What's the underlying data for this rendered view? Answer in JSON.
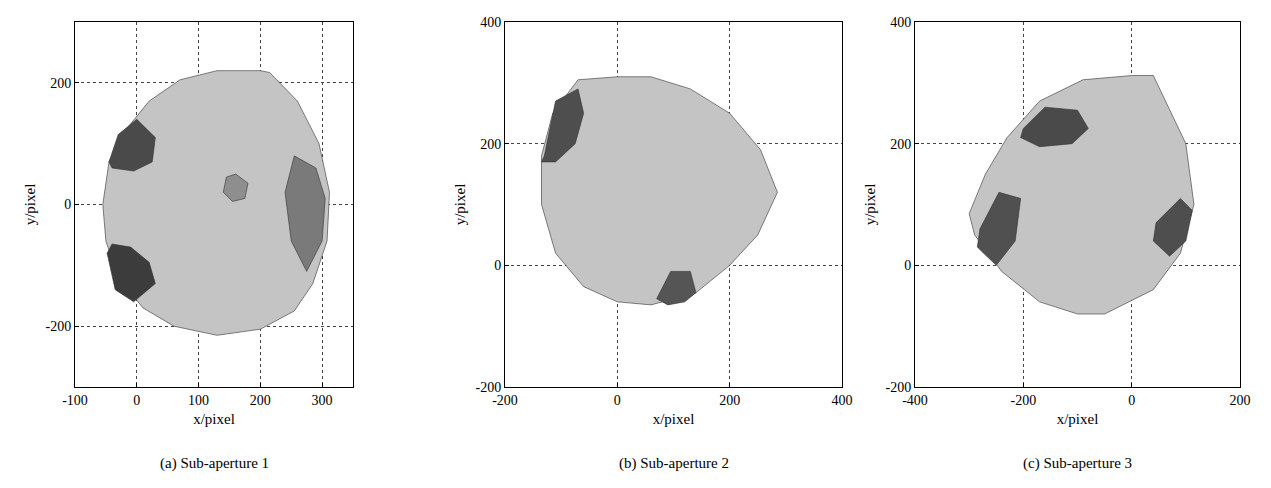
{
  "chart_data": [
    {
      "type": "area",
      "title": "(a) Sub-aperture 1",
      "x_label": "x/pixel",
      "y_label": "y/pixel",
      "xlim": [
        -100,
        350
      ],
      "ylim": [
        -300,
        300
      ],
      "xticks": [
        -100,
        0,
        100,
        200,
        300
      ],
      "yticks": [
        -200,
        0,
        200
      ],
      "grid": true,
      "series": [
        {
          "color": "#c4c4c4",
          "x": [
            -55,
            -45,
            -20,
            20,
            70,
            130,
            200,
            215,
            260,
            295,
            312,
            308,
            285,
            255,
            200,
            130,
            60,
            10,
            -30,
            -50,
            -55
          ],
          "y": [
            0,
            70,
            120,
            170,
            205,
            220,
            220,
            217,
            170,
            100,
            20,
            -60,
            -130,
            -175,
            -205,
            -215,
            -200,
            -170,
            -120,
            -60,
            0
          ]
        },
        {
          "color": "#4a4a4a",
          "x": [
            -45,
            -30,
            0,
            30,
            25,
            -5,
            -40,
            -45
          ],
          "y": [
            70,
            115,
            140,
            110,
            70,
            55,
            60,
            70
          ]
        },
        {
          "color": "#3c3c3c",
          "x": [
            -48,
            -35,
            -5,
            30,
            20,
            -10,
            -40,
            -48
          ],
          "y": [
            -80,
            -140,
            -160,
            -130,
            -95,
            -70,
            -65,
            -80
          ]
        },
        {
          "color": "#7a7a7a",
          "x": [
            255,
            290,
            305,
            300,
            275,
            250,
            240,
            255
          ],
          "y": [
            80,
            60,
            10,
            -60,
            -110,
            -60,
            20,
            80
          ]
        },
        {
          "color": "#8e8e8e",
          "x": [
            145,
            160,
            180,
            175,
            155,
            140,
            145
          ],
          "y": [
            45,
            50,
            35,
            10,
            5,
            20,
            45
          ]
        }
      ]
    },
    {
      "type": "area",
      "title": "(b) Sub-aperture 2",
      "x_label": "x/pixel",
      "y_label": "y/pixel",
      "xlim": [
        -200,
        400
      ],
      "ylim": [
        -200,
        400
      ],
      "xticks": [
        -200,
        0,
        200,
        400
      ],
      "yticks": [
        -200,
        0,
        200,
        400
      ],
      "grid": true,
      "series": [
        {
          "color": "#c4c4c4",
          "x": [
            -70,
            0,
            60,
            130,
            200,
            255,
            285,
            250,
            200,
            140,
            60,
            0,
            -60,
            -110,
            -135,
            -135,
            -115,
            -70
          ],
          "y": [
            305,
            310,
            310,
            290,
            250,
            190,
            120,
            50,
            0,
            -45,
            -65,
            -60,
            -35,
            20,
            100,
            180,
            250,
            305
          ]
        },
        {
          "color": "#4e4e4e",
          "x": [
            -130,
            -110,
            -70,
            -60,
            -75,
            -110,
            -135,
            -130
          ],
          "y": [
            180,
            270,
            290,
            250,
            200,
            170,
            170,
            180
          ]
        },
        {
          "color": "#555555",
          "x": [
            70,
            95,
            130,
            140,
            120,
            90,
            70
          ],
          "y": [
            -55,
            -10,
            -10,
            -45,
            -60,
            -65,
            -55
          ]
        }
      ]
    },
    {
      "type": "area",
      "title": "(c) Sub-aperture 3",
      "x_label": "x/pixel",
      "y_label": "y/pixel",
      "xlim": [
        -400,
        200
      ],
      "ylim": [
        -200,
        400
      ],
      "xticks": [
        -400,
        -200,
        0,
        200
      ],
      "yticks": [
        -200,
        0,
        200,
        400
      ],
      "grid": true,
      "series": [
        {
          "color": "#c4c4c4",
          "x": [
            40,
            100,
            115,
            90,
            40,
            -50,
            -100,
            -170,
            -240,
            -290,
            -300,
            -270,
            -230,
            -170,
            -90,
            0,
            40
          ],
          "y": [
            312,
            200,
            100,
            20,
            -40,
            -80,
            -80,
            -60,
            -10,
            50,
            85,
            150,
            210,
            270,
            305,
            312,
            312
          ]
        },
        {
          "color": "#4a4a4a",
          "x": [
            -200,
            -160,
            -100,
            -80,
            -110,
            -170,
            -205,
            -200
          ],
          "y": [
            225,
            260,
            255,
            225,
            200,
            195,
            210,
            225
          ]
        },
        {
          "color": "#505050",
          "x": [
            -280,
            -245,
            -205,
            -215,
            -250,
            -285,
            -280
          ],
          "y": [
            60,
            120,
            110,
            40,
            0,
            30,
            60
          ]
        },
        {
          "color": "#4e4e4e",
          "x": [
            45,
            90,
            112,
            100,
            70,
            40,
            45
          ],
          "y": [
            70,
            110,
            90,
            40,
            15,
            40,
            70
          ]
        }
      ]
    }
  ]
}
